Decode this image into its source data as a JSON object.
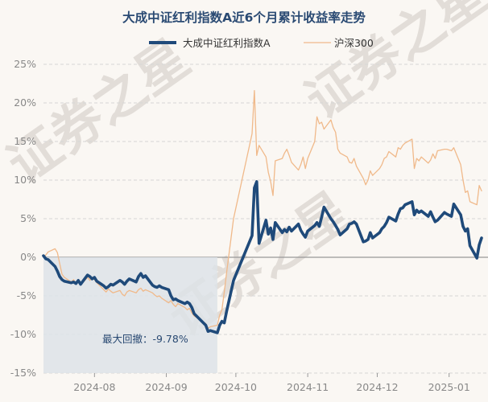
{
  "chart_data": {
    "type": "line",
    "title": "大成中证红利指数A近6个月累计收益率走势",
    "legend": {
      "placement": "top-center"
    },
    "colors": {
      "fund": "#1f4a7a",
      "index": "#f0b98a",
      "drawdown_fill": "#dde3e8",
      "zero_line": "#999999"
    },
    "grid": true,
    "ylim": [
      -15,
      25
    ],
    "yticks": [
      "25%",
      "20%",
      "15%",
      "10%",
      "5%",
      "0%",
      "-5%",
      "-10%",
      "-15%"
    ],
    "ytick_values": [
      25,
      20,
      15,
      10,
      5,
      0,
      -5,
      -10,
      -15
    ],
    "xlim": [
      "2024-07-10",
      "2025-01-15"
    ],
    "xticks": [
      {
        "label": "2024-08",
        "date": "2024-08-01"
      },
      {
        "label": "2024-09",
        "date": "2024-09-01"
      },
      {
        "label": "2024-10",
        "date": "2024-10-01"
      },
      {
        "label": "2024-11",
        "date": "2024-11-01"
      },
      {
        "label": "2024-12",
        "date": "2024-12-01"
      },
      {
        "label": "2025-01",
        "date": "2025-01-01"
      }
    ],
    "series": [
      {
        "name": "大成中证红利指数A",
        "key": "fund",
        "points": [
          [
            "2024-07-10",
            0.2
          ],
          [
            "2024-07-11",
            -0.2
          ],
          [
            "2024-07-12",
            -0.3
          ],
          [
            "2024-07-15",
            -1.2
          ],
          [
            "2024-07-16",
            -1.8
          ],
          [
            "2024-07-17",
            -2.5
          ],
          [
            "2024-07-18",
            -2.9
          ],
          [
            "2024-07-19",
            -3.1
          ],
          [
            "2024-07-22",
            -3.3
          ],
          [
            "2024-07-23",
            -3.2
          ],
          [
            "2024-07-24",
            -3.4
          ],
          [
            "2024-07-25",
            -3.0
          ],
          [
            "2024-07-26",
            -3.5
          ],
          [
            "2024-07-29",
            -2.3
          ],
          [
            "2024-07-30",
            -2.5
          ],
          [
            "2024-07-31",
            -2.8
          ],
          [
            "2024-08-01",
            -2.6
          ],
          [
            "2024-08-02",
            -3.1
          ],
          [
            "2024-08-05",
            -3.7
          ],
          [
            "2024-08-06",
            -4.0
          ],
          [
            "2024-08-07",
            -3.8
          ],
          [
            "2024-08-08",
            -3.5
          ],
          [
            "2024-08-09",
            -3.6
          ],
          [
            "2024-08-12",
            -3.0
          ],
          [
            "2024-08-13",
            -3.2
          ],
          [
            "2024-08-14",
            -3.5
          ],
          [
            "2024-08-15",
            -3.1
          ],
          [
            "2024-08-16",
            -2.8
          ],
          [
            "2024-08-19",
            -3.2
          ],
          [
            "2024-08-20",
            -2.5
          ],
          [
            "2024-08-21",
            -2.1
          ],
          [
            "2024-08-22",
            -2.6
          ],
          [
            "2024-08-23",
            -2.4
          ],
          [
            "2024-08-26",
            -3.6
          ],
          [
            "2024-08-27",
            -3.8
          ],
          [
            "2024-08-28",
            -3.9
          ],
          [
            "2024-08-29",
            -3.7
          ],
          [
            "2024-08-30",
            -3.9
          ],
          [
            "2024-09-02",
            -4.2
          ],
          [
            "2024-09-03",
            -5.0
          ],
          [
            "2024-09-04",
            -5.5
          ],
          [
            "2024-09-05",
            -5.4
          ],
          [
            "2024-09-06",
            -5.6
          ],
          [
            "2024-09-09",
            -6.0
          ],
          [
            "2024-09-10",
            -5.8
          ],
          [
            "2024-09-11",
            -6.0
          ],
          [
            "2024-09-12",
            -6.5
          ],
          [
            "2024-09-13",
            -7.3
          ],
          [
            "2024-09-18",
            -8.8
          ],
          [
            "2024-09-19",
            -9.6
          ],
          [
            "2024-09-20",
            -9.5
          ],
          [
            "2024-09-23",
            -9.78
          ],
          [
            "2024-09-24",
            -8.8
          ],
          [
            "2024-09-25",
            -8.3
          ],
          [
            "2024-09-26",
            -8.5
          ],
          [
            "2024-09-27",
            -7.0
          ],
          [
            "2024-09-30",
            -3.0
          ],
          [
            "2024-10-08",
            2.8
          ],
          [
            "2024-10-09",
            9.0
          ],
          [
            "2024-10-10",
            9.8
          ],
          [
            "2024-10-11",
            1.8
          ],
          [
            "2024-10-14",
            4.8
          ],
          [
            "2024-10-15",
            3.0
          ],
          [
            "2024-10-16",
            3.8
          ],
          [
            "2024-10-17",
            2.3
          ],
          [
            "2024-10-18",
            4.5
          ],
          [
            "2024-10-21",
            3.2
          ],
          [
            "2024-10-22",
            3.6
          ],
          [
            "2024-10-23",
            3.3
          ],
          [
            "2024-10-24",
            3.9
          ],
          [
            "2024-10-25",
            3.4
          ],
          [
            "2024-10-28",
            4.3
          ],
          [
            "2024-10-29",
            3.5
          ],
          [
            "2024-10-30",
            3.0
          ],
          [
            "2024-10-31",
            2.6
          ],
          [
            "2024-11-01",
            3.4
          ],
          [
            "2024-11-04",
            4.1
          ],
          [
            "2024-11-05",
            4.5
          ],
          [
            "2024-11-06",
            4.0
          ],
          [
            "2024-11-07",
            5.2
          ],
          [
            "2024-11-08",
            6.5
          ],
          [
            "2024-11-11",
            5.0
          ],
          [
            "2024-11-12",
            4.6
          ],
          [
            "2024-11-13",
            4.1
          ],
          [
            "2024-11-14",
            3.6
          ],
          [
            "2024-11-15",
            2.9
          ],
          [
            "2024-11-18",
            3.7
          ],
          [
            "2024-11-19",
            4.3
          ],
          [
            "2024-11-20",
            4.4
          ],
          [
            "2024-11-21",
            4.6
          ],
          [
            "2024-11-22",
            4.3
          ],
          [
            "2024-11-25",
            2.0
          ],
          [
            "2024-11-26",
            2.1
          ],
          [
            "2024-11-27",
            2.3
          ],
          [
            "2024-11-28",
            3.2
          ],
          [
            "2024-11-29",
            2.5
          ],
          [
            "2024-12-02",
            3.2
          ],
          [
            "2024-12-03",
            3.7
          ],
          [
            "2024-12-04",
            4.0
          ],
          [
            "2024-12-05",
            4.5
          ],
          [
            "2024-12-06",
            5.2
          ],
          [
            "2024-12-09",
            4.7
          ],
          [
            "2024-12-10",
            5.6
          ],
          [
            "2024-12-11",
            6.3
          ],
          [
            "2024-12-12",
            6.4
          ],
          [
            "2024-12-13",
            6.8
          ],
          [
            "2024-12-16",
            7.2
          ],
          [
            "2024-12-17",
            5.5
          ],
          [
            "2024-12-18",
            6.1
          ],
          [
            "2024-12-19",
            5.8
          ],
          [
            "2024-12-20",
            6.0
          ],
          [
            "2024-12-23",
            5.3
          ],
          [
            "2024-12-24",
            5.9
          ],
          [
            "2024-12-25",
            5.2
          ],
          [
            "2024-12-26",
            4.6
          ],
          [
            "2024-12-27",
            4.8
          ],
          [
            "2024-12-30",
            5.8
          ],
          [
            "2024-12-31",
            5.6
          ],
          [
            "2025-01-02",
            5.3
          ],
          [
            "2025-01-03",
            6.9
          ],
          [
            "2025-01-06",
            5.5
          ],
          [
            "2025-01-07",
            4.0
          ],
          [
            "2025-01-08",
            3.4
          ],
          [
            "2025-01-09",
            3.7
          ],
          [
            "2025-01-10",
            1.5
          ],
          [
            "2025-01-13",
            -0.1
          ],
          [
            "2025-01-14",
            1.6
          ],
          [
            "2025-01-15",
            2.5
          ]
        ]
      },
      {
        "name": "沪深300",
        "key": "index",
        "points": [
          [
            "2024-07-10",
            0.0
          ],
          [
            "2024-07-11",
            0.3
          ],
          [
            "2024-07-12",
            0.7
          ],
          [
            "2024-07-15",
            1.1
          ],
          [
            "2024-07-16",
            0.6
          ],
          [
            "2024-07-17",
            -0.8
          ],
          [
            "2024-07-18",
            -2.2
          ],
          [
            "2024-07-19",
            -2.6
          ],
          [
            "2024-07-22",
            -3.2
          ],
          [
            "2024-07-23",
            -2.9
          ],
          [
            "2024-07-24",
            -3.4
          ],
          [
            "2024-07-25",
            -3.1
          ],
          [
            "2024-07-26",
            -3.6
          ],
          [
            "2024-07-29",
            -2.6
          ],
          [
            "2024-07-30",
            -3.0
          ],
          [
            "2024-07-31",
            -2.6
          ],
          [
            "2024-08-01",
            -2.9
          ],
          [
            "2024-08-02",
            -3.3
          ],
          [
            "2024-08-05",
            -4.2
          ],
          [
            "2024-08-06",
            -4.5
          ],
          [
            "2024-08-07",
            -4.1
          ],
          [
            "2024-08-08",
            -4.4
          ],
          [
            "2024-08-09",
            -4.6
          ],
          [
            "2024-08-12",
            -4.3
          ],
          [
            "2024-08-13",
            -4.8
          ],
          [
            "2024-08-14",
            -5.0
          ],
          [
            "2024-08-15",
            -4.5
          ],
          [
            "2024-08-16",
            -4.3
          ],
          [
            "2024-08-19",
            -4.6
          ],
          [
            "2024-08-20",
            -4.2
          ],
          [
            "2024-08-21",
            -4.0
          ],
          [
            "2024-08-22",
            -4.4
          ],
          [
            "2024-08-23",
            -4.2
          ],
          [
            "2024-08-26",
            -4.6
          ],
          [
            "2024-08-27",
            -4.9
          ],
          [
            "2024-08-28",
            -5.1
          ],
          [
            "2024-08-29",
            -5.0
          ],
          [
            "2024-08-30",
            -5.3
          ],
          [
            "2024-09-02",
            -5.9
          ],
          [
            "2024-09-03",
            -5.6
          ],
          [
            "2024-09-04",
            -6.1
          ],
          [
            "2024-09-05",
            -6.4
          ],
          [
            "2024-09-06",
            -6.0
          ],
          [
            "2024-09-09",
            -6.5
          ],
          [
            "2024-09-10",
            -6.8
          ],
          [
            "2024-09-11",
            -6.6
          ],
          [
            "2024-09-12",
            -7.2
          ],
          [
            "2024-09-13",
            -7.6
          ],
          [
            "2024-09-18",
            -8.6
          ],
          [
            "2024-09-19",
            -9.2
          ],
          [
            "2024-09-20",
            -9.0
          ],
          [
            "2024-09-23",
            -8.8
          ],
          [
            "2024-09-24",
            -7.5
          ],
          [
            "2024-09-25",
            -6.8
          ],
          [
            "2024-09-26",
            -4.5
          ],
          [
            "2024-09-27",
            -2.0
          ],
          [
            "2024-09-30",
            5.0
          ],
          [
            "2024-10-08",
            16.0
          ],
          [
            "2024-10-09",
            21.6
          ],
          [
            "2024-10-10",
            13.2
          ],
          [
            "2024-10-11",
            14.5
          ],
          [
            "2024-10-14",
            13.0
          ],
          [
            "2024-10-15",
            11.0
          ],
          [
            "2024-10-16",
            9.8
          ],
          [
            "2024-10-17",
            8.0
          ],
          [
            "2024-10-18",
            12.5
          ],
          [
            "2024-10-21",
            12.8
          ],
          [
            "2024-10-22",
            13.5
          ],
          [
            "2024-10-23",
            14.0
          ],
          [
            "2024-10-24",
            13.2
          ],
          [
            "2024-10-25",
            12.3
          ],
          [
            "2024-10-28",
            11.3
          ],
          [
            "2024-10-29",
            12.0
          ],
          [
            "2024-10-30",
            13.0
          ],
          [
            "2024-10-31",
            11.5
          ],
          [
            "2024-11-01",
            12.8
          ],
          [
            "2024-11-04",
            15.0
          ],
          [
            "2024-11-05",
            18.2
          ],
          [
            "2024-11-06",
            17.3
          ],
          [
            "2024-11-07",
            17.5
          ],
          [
            "2024-11-08",
            16.6
          ],
          [
            "2024-11-11",
            17.8
          ],
          [
            "2024-11-12",
            16.8
          ],
          [
            "2024-11-13",
            16.2
          ],
          [
            "2024-11-14",
            14.0
          ],
          [
            "2024-11-15",
            13.5
          ],
          [
            "2024-11-18",
            13.0
          ],
          [
            "2024-11-19",
            12.3
          ],
          [
            "2024-11-20",
            12.2
          ],
          [
            "2024-11-21",
            12.8
          ],
          [
            "2024-11-22",
            11.8
          ],
          [
            "2024-11-25",
            10.2
          ],
          [
            "2024-11-26",
            9.4
          ],
          [
            "2024-11-27",
            10.0
          ],
          [
            "2024-11-28",
            11.2
          ],
          [
            "2024-11-29",
            10.6
          ],
          [
            "2024-12-02",
            11.5
          ],
          [
            "2024-12-03",
            12.0
          ],
          [
            "2024-12-04",
            12.8
          ],
          [
            "2024-12-05",
            13.0
          ],
          [
            "2024-12-06",
            13.7
          ],
          [
            "2024-12-09",
            13.0
          ],
          [
            "2024-12-10",
            14.2
          ],
          [
            "2024-12-11",
            14.0
          ],
          [
            "2024-12-12",
            14.5
          ],
          [
            "2024-12-13",
            14.8
          ],
          [
            "2024-12-16",
            15.3
          ],
          [
            "2024-12-17",
            11.5
          ],
          [
            "2024-12-18",
            12.8
          ],
          [
            "2024-12-19",
            12.5
          ],
          [
            "2024-12-20",
            13.0
          ],
          [
            "2024-12-23",
            12.2
          ],
          [
            "2024-12-24",
            12.6
          ],
          [
            "2024-12-25",
            13.4
          ],
          [
            "2024-12-26",
            12.8
          ],
          [
            "2024-12-27",
            13.8
          ],
          [
            "2024-12-30",
            14.0
          ],
          [
            "2024-12-31",
            14.0
          ],
          [
            "2025-01-02",
            13.8
          ],
          [
            "2025-01-03",
            14.2
          ],
          [
            "2025-01-06",
            12.0
          ],
          [
            "2025-01-07",
            10.0
          ],
          [
            "2025-01-08",
            8.4
          ],
          [
            "2025-01-09",
            8.6
          ],
          [
            "2025-01-10",
            7.2
          ],
          [
            "2025-01-13",
            6.8
          ],
          [
            "2025-01-14",
            9.3
          ],
          [
            "2025-01-15",
            8.6
          ]
        ]
      }
    ],
    "drawdown": {
      "start": "2024-07-10",
      "end": "2024-09-23",
      "value": -9.78,
      "label": "最大回撤：-9.78%"
    },
    "watermark": "证券之星"
  }
}
